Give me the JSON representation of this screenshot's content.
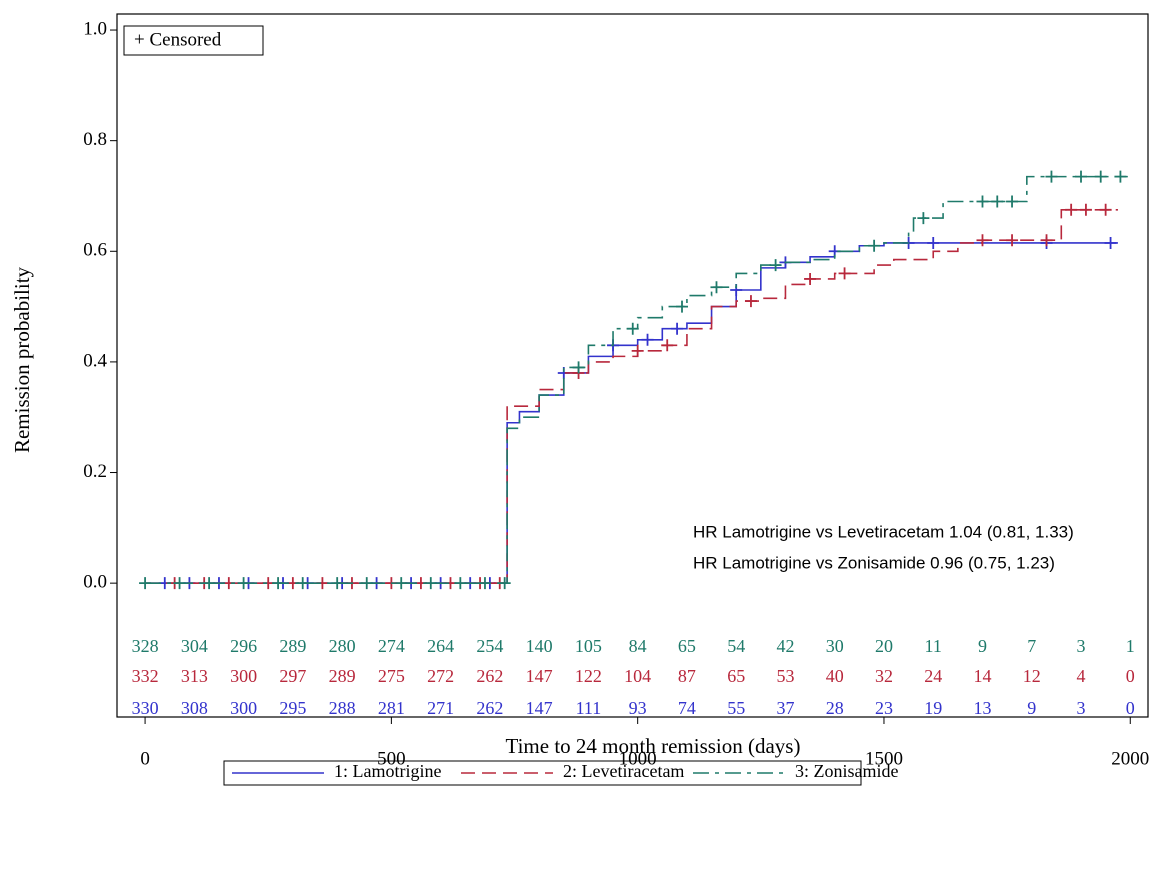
{
  "chart_data": {
    "type": "step",
    "x_label": "Time to 24 month remission (days)",
    "y_label": "Remission probability",
    "censor_label": "+ Censored",
    "annotations": [
      "HR Lamotrigine vs Levetiracetam 1.04 (0.81, 1.33)",
      "HR Lamotrigine vs Zonisamide 0.96 (0.75, 1.23)"
    ],
    "xlim": [
      -57,
      2036
    ],
    "ylim": [
      -0.242,
      1.029
    ],
    "xticks": [
      0,
      500,
      1000,
      1500,
      2000
    ],
    "yticks": [
      {
        "value": 0,
        "label": "0.0"
      },
      {
        "value": 0.2,
        "label": "0.2"
      },
      {
        "value": 0.4,
        "label": "0.4"
      },
      {
        "value": 0.6,
        "label": "0.6"
      },
      {
        "value": 0.8,
        "label": "0.8"
      },
      {
        "value": 1,
        "label": "1.0"
      }
    ],
    "risk_times": [
      0,
      100,
      200,
      300,
      400,
      500,
      600,
      700,
      800,
      900,
      1000,
      1100,
      1200,
      1300,
      1400,
      1500,
      1600,
      1700,
      1800,
      1900,
      2000
    ],
    "series": [
      {
        "name": "1: Lamotrigine",
        "color": "#3333cc",
        "dash": "none",
        "x": [
          0,
          735,
          760,
          800,
          850,
          900,
          950,
          1000,
          1050,
          1100,
          1150,
          1200,
          1250,
          1300,
          1350,
          1400,
          1450,
          1500,
          1975
        ],
        "values": [
          0,
          0.29,
          0.31,
          0.34,
          0.38,
          0.41,
          0.43,
          0.44,
          0.46,
          0.47,
          0.5,
          0.53,
          0.57,
          0.58,
          0.59,
          0.6,
          0.61,
          0.615,
          0.615
        ],
        "censor_x": [
          40,
          90,
          150,
          210,
          280,
          330,
          400,
          470,
          540,
          600,
          660,
          700,
          850,
          950,
          1020,
          1080,
          1200,
          1300,
          1400,
          1550,
          1600,
          1830,
          1960
        ],
        "at_risk": [
          330,
          308,
          300,
          295,
          288,
          281,
          271,
          262,
          147,
          111,
          93,
          74,
          55,
          37,
          28,
          23,
          19,
          13,
          9,
          3,
          0
        ]
      },
      {
        "name": "2: Levetiracetam",
        "color": "#b8283c",
        "dash": "14,7",
        "x": [
          0,
          735,
          800,
          850,
          900,
          950,
          1000,
          1050,
          1100,
          1150,
          1200,
          1250,
          1300,
          1350,
          1400,
          1480,
          1520,
          1600,
          1650,
          1700,
          1860,
          1975
        ],
        "values": [
          0,
          0.32,
          0.35,
          0.38,
          0.4,
          0.41,
          0.42,
          0.43,
          0.46,
          0.5,
          0.51,
          0.515,
          0.54,
          0.55,
          0.56,
          0.575,
          0.585,
          0.6,
          0.615,
          0.62,
          0.675,
          0.675
        ],
        "censor_x": [
          60,
          120,
          170,
          250,
          300,
          360,
          420,
          500,
          560,
          620,
          680,
          720,
          880,
          1000,
          1060,
          1230,
          1350,
          1420,
          1700,
          1760,
          1830,
          1880,
          1910,
          1950
        ],
        "at_risk": [
          332,
          313,
          300,
          297,
          289,
          275,
          272,
          262,
          147,
          122,
          104,
          87,
          65,
          53,
          40,
          32,
          24,
          14,
          12,
          4,
          0
        ]
      },
      {
        "name": "3: Zonisamide",
        "color": "#1f7a6a",
        "dash": "16,6,4,6",
        "x": [
          0,
          735,
          760,
          800,
          850,
          900,
          950,
          1000,
          1050,
          1100,
          1150,
          1200,
          1250,
          1300,
          1350,
          1400,
          1450,
          1500,
          1550,
          1560,
          1620,
          1790,
          1995
        ],
        "values": [
          0,
          0.28,
          0.3,
          0.34,
          0.39,
          0.43,
          0.46,
          0.48,
          0.5,
          0.52,
          0.535,
          0.56,
          0.575,
          0.58,
          0.585,
          0.6,
          0.61,
          0.615,
          0.635,
          0.66,
          0.69,
          0.735,
          0.735
        ],
        "censor_x": [
          0,
          70,
          130,
          200,
          270,
          320,
          390,
          450,
          520,
          580,
          640,
          690,
          730,
          880,
          990,
          1090,
          1160,
          1280,
          1480,
          1580,
          1700,
          1730,
          1760,
          1840,
          1900,
          1940,
          1980
        ],
        "at_risk": [
          328,
          304,
          296,
          289,
          280,
          274,
          264,
          254,
          140,
          105,
          84,
          65,
          54,
          42,
          30,
          20,
          11,
          9,
          7,
          3,
          1
        ]
      }
    ]
  }
}
